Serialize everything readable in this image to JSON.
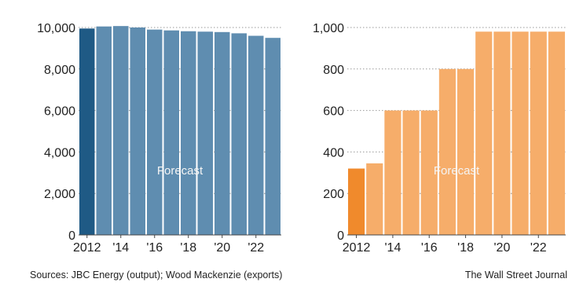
{
  "chart_data": [
    {
      "type": "bar",
      "title": "",
      "xlabel": "",
      "ylabel": "",
      "ylim": [
        0,
        10000
      ],
      "yticks": [
        "0",
        "2,000",
        "4,000",
        "6,000",
        "8,000",
        "10,000"
      ],
      "ytick_values": [
        0,
        2000,
        4000,
        6000,
        8000,
        10000
      ],
      "categories": [
        "2012",
        "2013",
        "2014",
        "2015",
        "2016",
        "2017",
        "2018",
        "2019",
        "2020",
        "2021",
        "2022",
        "2023"
      ],
      "xtick_labels": [
        "2012",
        "",
        "'14",
        "",
        "'16",
        "",
        "'18",
        "",
        "'20",
        "",
        "'22",
        ""
      ],
      "values": [
        9950,
        10050,
        10070,
        10000,
        9900,
        9860,
        9820,
        9800,
        9780,
        9720,
        9600,
        9500
      ],
      "annotation": "Forecast",
      "grid": true,
      "colors": {
        "actual": "#1f5a85",
        "forecast": "#5f8db0"
      }
    },
    {
      "type": "bar",
      "title": "",
      "xlabel": "",
      "ylabel": "",
      "ylim": [
        0,
        1000
      ],
      "yticks": [
        "0",
        "200",
        "400",
        "600",
        "800",
        "1,000"
      ],
      "ytick_values": [
        0,
        200,
        400,
        600,
        800,
        1000
      ],
      "categories": [
        "2012",
        "2013",
        "2014",
        "2015",
        "2016",
        "2017",
        "2018",
        "2019",
        "2020",
        "2021",
        "2022",
        "2023"
      ],
      "xtick_labels": [
        "2012",
        "",
        "'14",
        "",
        "'16",
        "",
        "'18",
        "",
        "'20",
        "",
        "'22",
        ""
      ],
      "values": [
        320,
        345,
        600,
        600,
        600,
        800,
        800,
        980,
        980,
        980,
        980,
        980
      ],
      "annotation": "Forecast",
      "grid": true,
      "colors": {
        "actual": "#f08a2c",
        "forecast": "#f6ad6a"
      }
    }
  ],
  "footer": {
    "sources": "Sources: JBC Energy (output); Wood Mackenzie (exports)",
    "credit": "The Wall Street Journal"
  }
}
